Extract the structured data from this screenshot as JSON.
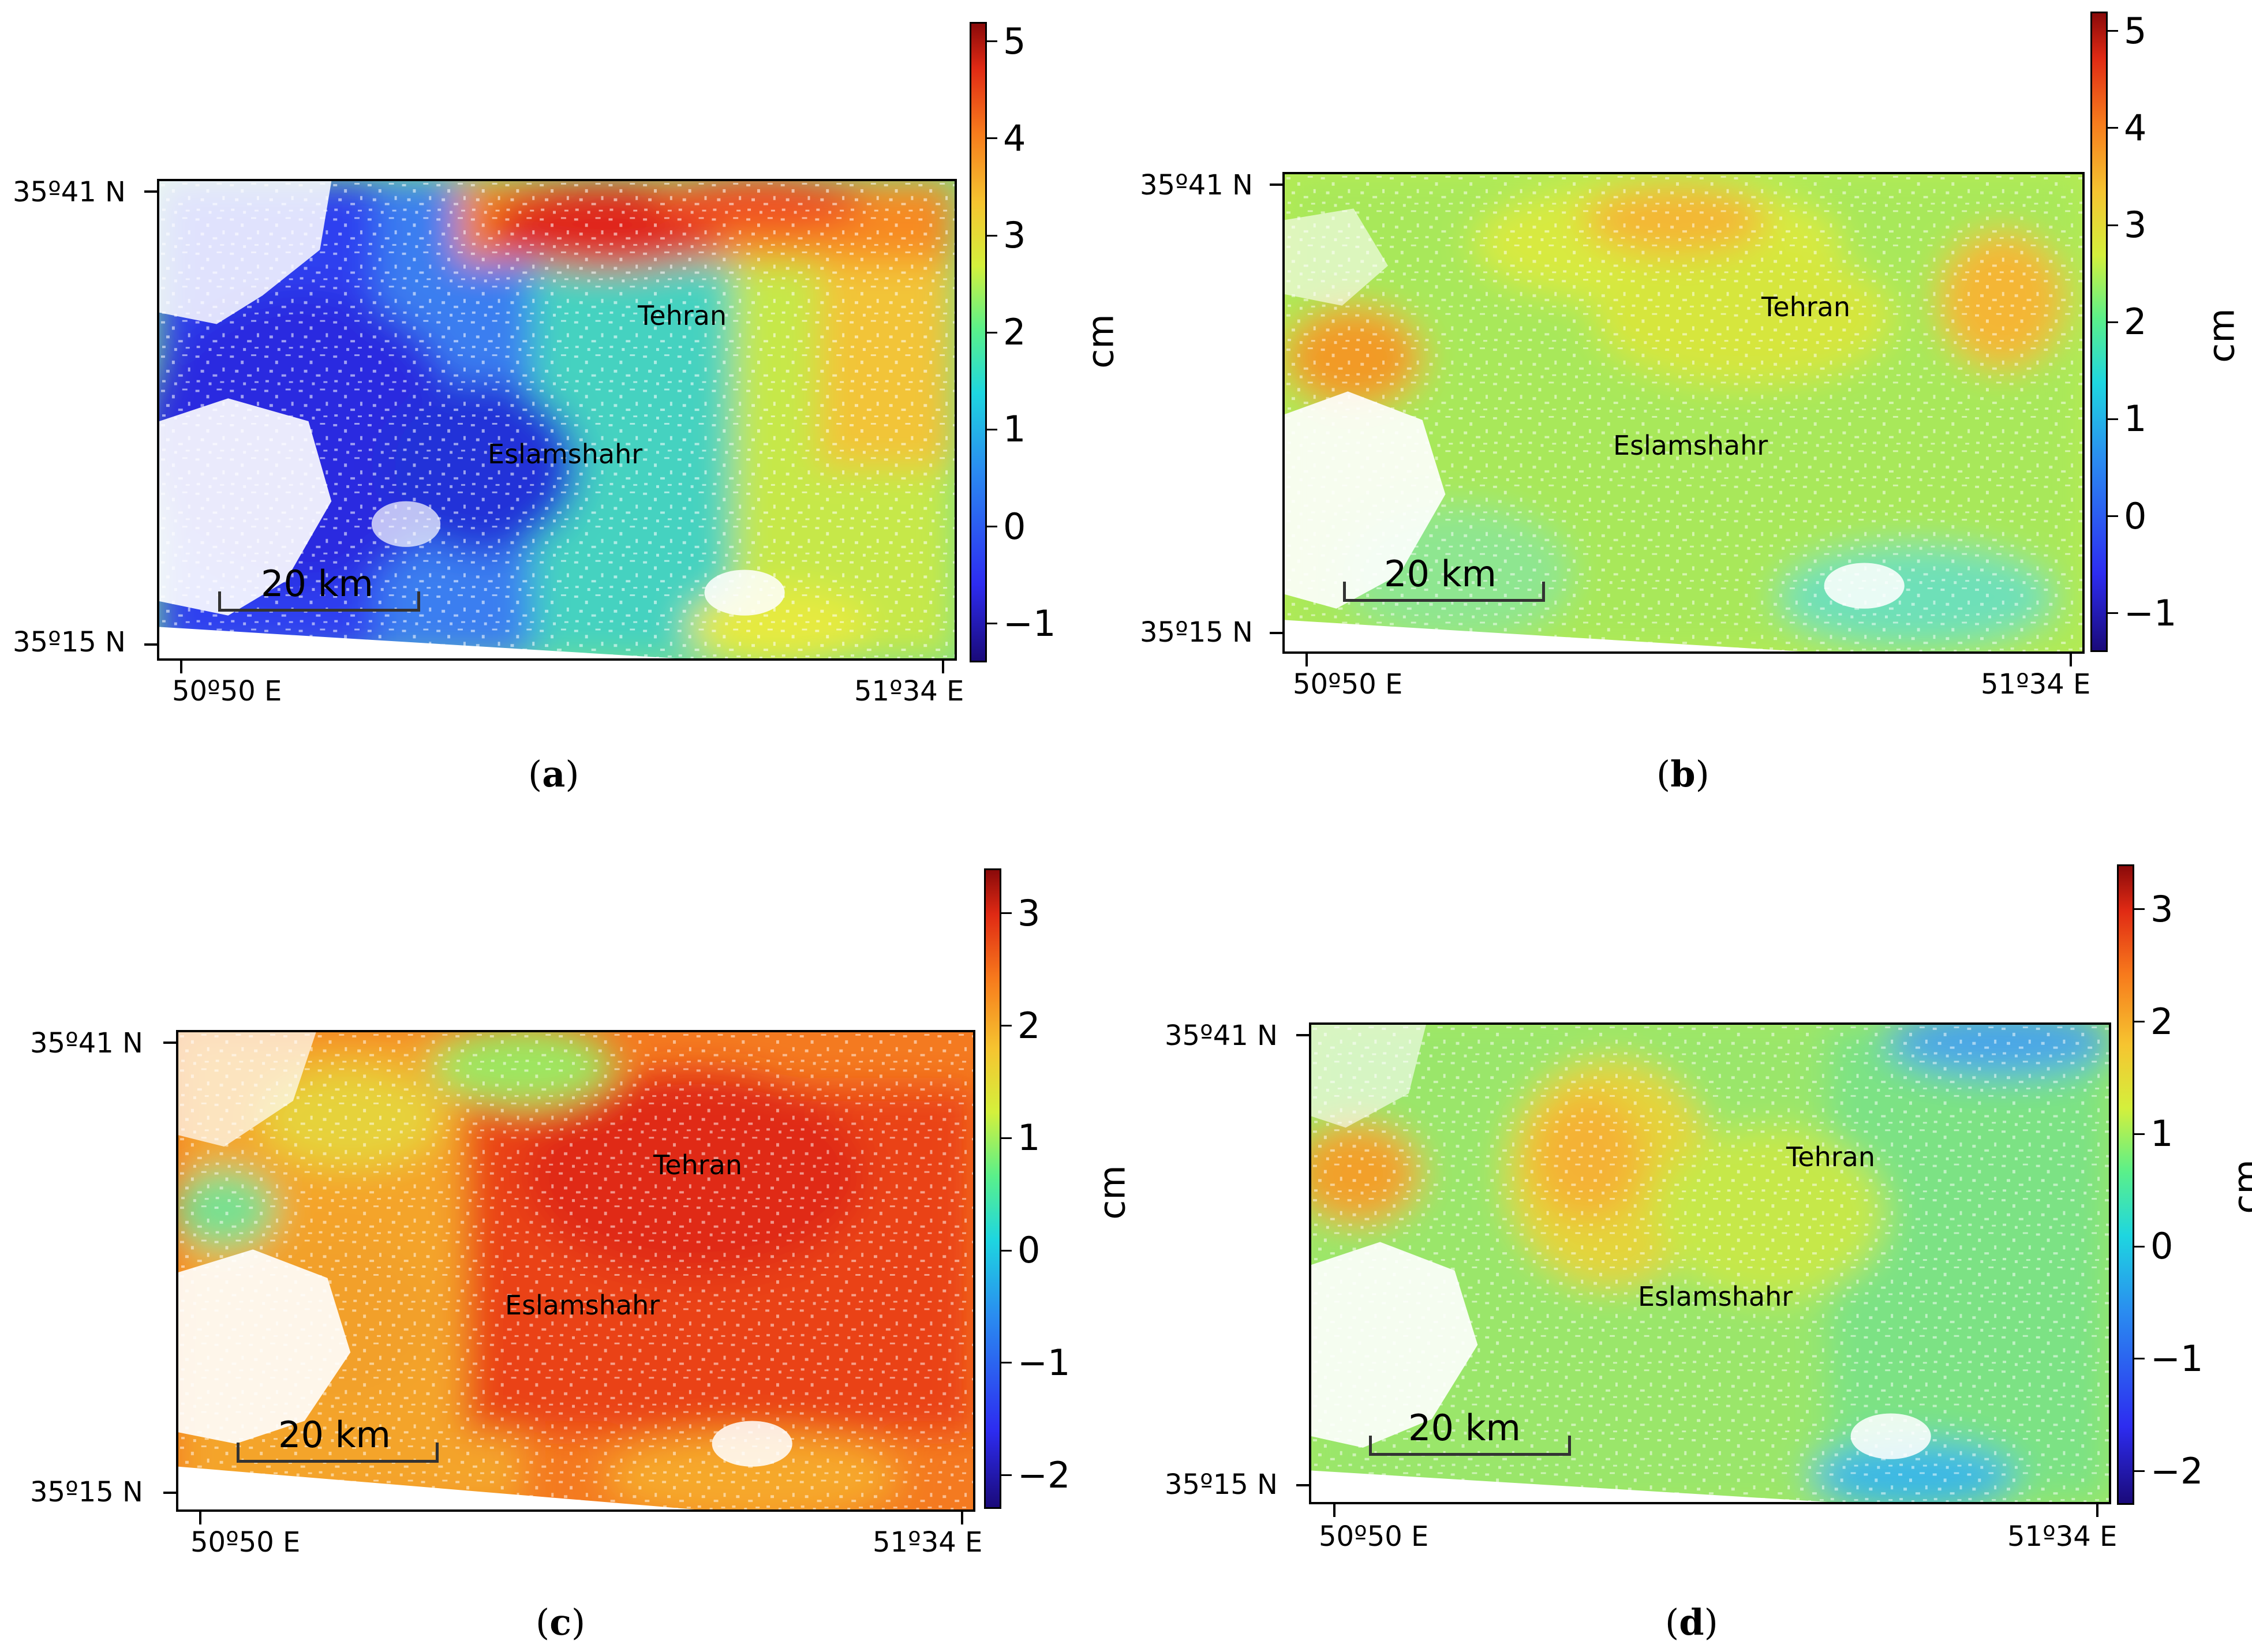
{
  "panels": [
    {
      "id": "a",
      "caption": "a",
      "lat_top": "35º41 N",
      "lat_bottom": "35º15 N",
      "lon_left": "50º50 E",
      "lon_right": "51º34 E",
      "city_1": "Tehran",
      "city_2": "Eslamshahr",
      "scale_label": "20 km",
      "colorbar_unit": "cm",
      "colorbar_ticks": [
        "5",
        "4",
        "3",
        "2",
        "1",
        "0",
        "−1"
      ],
      "colorbar_range": [
        -1.4,
        5.2
      ]
    },
    {
      "id": "b",
      "caption": "b",
      "lat_top": "35º41 N",
      "lat_bottom": "35º15 N",
      "lon_left": "50º50 E",
      "lon_right": "51º34 E",
      "city_1": "Tehran",
      "city_2": "Eslamshahr",
      "scale_label": "20 km",
      "colorbar_unit": "cm",
      "colorbar_ticks": [
        "5",
        "4",
        "3",
        "2",
        "1",
        "0",
        "−1"
      ],
      "colorbar_range": [
        -1.4,
        5.2
      ]
    },
    {
      "id": "c",
      "caption": "c",
      "lat_top": "35º41 N",
      "lat_bottom": "35º15 N",
      "lon_left": "50º50 E",
      "lon_right": "51º34 E",
      "city_1": "Tehran",
      "city_2": "Eslamshahr",
      "scale_label": "20 km",
      "colorbar_unit": "cm",
      "colorbar_ticks": [
        "3",
        "2",
        "1",
        "0",
        "−1",
        "−2"
      ],
      "colorbar_range": [
        -2.3,
        3.4
      ]
    },
    {
      "id": "d",
      "caption": "d",
      "lat_top": "35º41 N",
      "lat_bottom": "35º15 N",
      "lon_left": "50º50 E",
      "lon_right": "51º34 E",
      "city_1": "Tehran",
      "city_2": "Eslamshahr",
      "scale_label": "20 km",
      "colorbar_unit": "cm",
      "colorbar_ticks": [
        "3",
        "2",
        "1",
        "0",
        "−1",
        "−2"
      ],
      "colorbar_range": [
        -2.3,
        3.4
      ]
    }
  ],
  "colormap": [
    "#1a0a7a",
    "#2d2cf0",
    "#2a8cf0",
    "#1ed6e0",
    "#5af08a",
    "#d4f03c",
    "#f6c430",
    "#f77a1c",
    "#e02a14",
    "#8a0a0a"
  ]
}
